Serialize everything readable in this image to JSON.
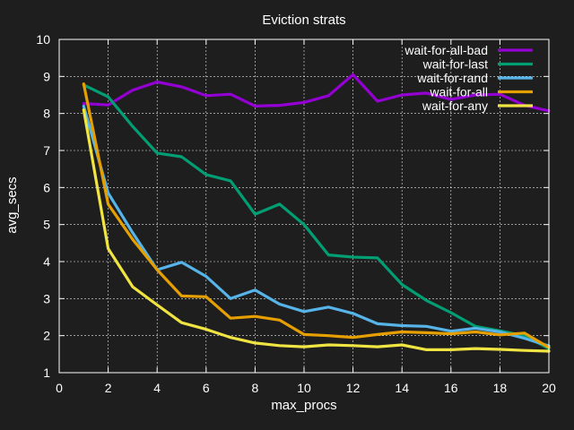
{
  "chart_data": {
    "type": "line",
    "title": "Eviction strats",
    "xlabel": "max_procs",
    "ylabel": "avg_secs",
    "xlim": [
      0,
      20
    ],
    "ylim": [
      1,
      10
    ],
    "xticks": [
      0,
      2,
      4,
      6,
      8,
      10,
      12,
      14,
      16,
      18,
      20
    ],
    "yticks": [
      1,
      2,
      3,
      4,
      5,
      6,
      7,
      8,
      9,
      10
    ],
    "grid": true,
    "legend_position": "top-right",
    "x": [
      1,
      2,
      3,
      4,
      5,
      6,
      7,
      8,
      9,
      10,
      11,
      12,
      13,
      14,
      15,
      16,
      17,
      18,
      19,
      20
    ],
    "series": [
      {
        "name": "wait-for-all-bad",
        "color": "#9400d3",
        "values": [
          8.27,
          8.23,
          8.63,
          8.85,
          8.72,
          8.48,
          8.52,
          8.2,
          8.22,
          8.3,
          8.48,
          9.05,
          8.33,
          8.5,
          8.55,
          8.38,
          8.5,
          8.52,
          8.22,
          8.07
        ]
      },
      {
        "name": "wait-for-last",
        "color": "#009e73",
        "values": [
          8.77,
          8.45,
          7.65,
          6.93,
          6.83,
          6.35,
          6.18,
          5.28,
          5.55,
          5.0,
          4.18,
          4.12,
          4.1,
          3.38,
          2.95,
          2.62,
          2.25,
          2.13,
          2.0,
          1.65
        ]
      },
      {
        "name": "wait-for-rand",
        "color": "#56b4e9",
        "values": [
          8.2,
          5.85,
          4.78,
          3.78,
          3.98,
          3.6,
          3.0,
          3.23,
          2.85,
          2.65,
          2.77,
          2.6,
          2.32,
          2.27,
          2.25,
          2.12,
          2.2,
          2.1,
          1.93,
          1.72
        ]
      },
      {
        "name": "wait-for-all",
        "color": "#e69f00",
        "values": [
          8.8,
          5.55,
          4.6,
          3.78,
          3.07,
          3.05,
          2.47,
          2.52,
          2.42,
          2.03,
          2.0,
          1.95,
          2.03,
          2.1,
          2.08,
          2.05,
          2.1,
          2.02,
          2.07,
          1.68
        ]
      },
      {
        "name": "wait-for-any",
        "color": "#f0e442",
        "values": [
          8.1,
          4.35,
          3.32,
          2.83,
          2.35,
          2.17,
          1.95,
          1.8,
          1.73,
          1.7,
          1.75,
          1.73,
          1.7,
          1.75,
          1.62,
          1.62,
          1.65,
          1.63,
          1.6,
          1.58
        ]
      }
    ]
  }
}
